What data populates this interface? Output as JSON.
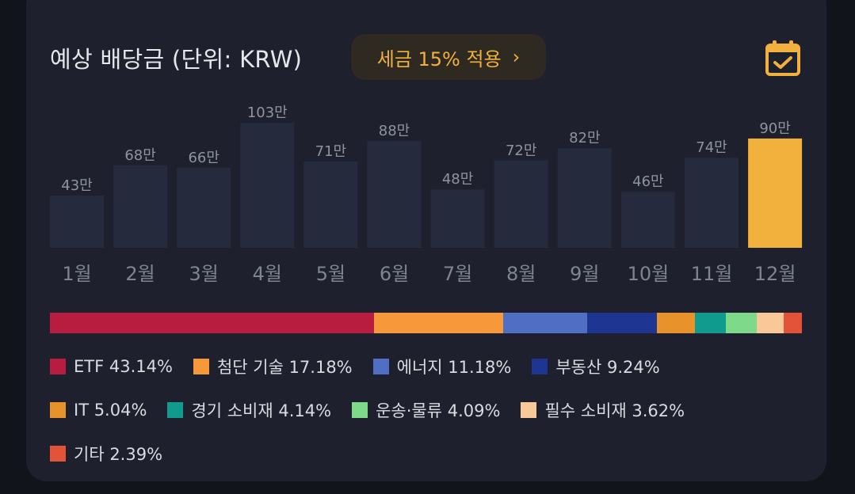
{
  "header": {
    "title": "예상 배당금 (단위: KRW)",
    "tax_button": "세금 15% 적용",
    "tax_chevron": "›"
  },
  "colors": {
    "bar_default": "#252a3d",
    "bar_highlight": "#f2b03c",
    "accent": "#f2b03c"
  },
  "chart_data": {
    "type": "bar",
    "title": "예상 배당금 (단위: KRW)",
    "categories": [
      "1월",
      "2월",
      "3월",
      "4월",
      "5월",
      "6월",
      "7월",
      "8월",
      "9월",
      "10월",
      "11월",
      "12월"
    ],
    "values": [
      43,
      68,
      66,
      103,
      71,
      88,
      48,
      72,
      82,
      46,
      74,
      90
    ],
    "value_labels": [
      "43만",
      "68만",
      "66만",
      "103만",
      "71만",
      "88만",
      "48만",
      "72만",
      "82만",
      "46만",
      "74만",
      "90만"
    ],
    "highlight_index": 11,
    "ylim": [
      0,
      103
    ],
    "grid": false
  },
  "allocation": {
    "segments": [
      {
        "label": "ETF 43.14%",
        "pct": 43.14,
        "color": "#b81c3f"
      },
      {
        "label": "첨단 기술 17.18%",
        "pct": 17.18,
        "color": "#f7993a"
      },
      {
        "label": "에너지 11.18%",
        "pct": 11.18,
        "color": "#4f6ec4"
      },
      {
        "label": "부동산 9.24%",
        "pct": 9.24,
        "color": "#1f3592"
      },
      {
        "label": "IT 5.04%",
        "pct": 5.04,
        "color": "#e8922c"
      },
      {
        "label": "경기 소비재 4.14%",
        "pct": 4.14,
        "color": "#0f9b8e"
      },
      {
        "label": "운송·물류 4.09%",
        "pct": 4.09,
        "color": "#7ed98a"
      },
      {
        "label": "필수 소비재 3.62%",
        "pct": 3.62,
        "color": "#f8c898"
      },
      {
        "label": "기타 2.39%",
        "pct": 2.39,
        "color": "#e2533a"
      }
    ]
  }
}
